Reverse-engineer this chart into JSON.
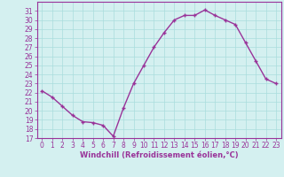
{
  "x": [
    0,
    1,
    2,
    3,
    4,
    5,
    6,
    7,
    8,
    9,
    10,
    11,
    12,
    13,
    14,
    15,
    16,
    17,
    18,
    19,
    20,
    21,
    22,
    23
  ],
  "y": [
    22.2,
    21.5,
    20.5,
    19.5,
    18.8,
    18.7,
    18.4,
    17.2,
    20.3,
    23.0,
    25.0,
    27.0,
    28.6,
    30.0,
    30.5,
    30.5,
    31.1,
    30.5,
    30.0,
    29.5,
    27.5,
    25.5,
    23.5,
    23.0
  ],
  "line_color": "#993399",
  "marker": "+",
  "marker_size": 3,
  "marker_linewidth": 1.0,
  "bg_color": "#d4f0f0",
  "grid_color": "#aadddd",
  "xlabel": "Windchill (Refroidissement éolien,°C)",
  "xlabel_color": "#993399",
  "tick_color": "#993399",
  "spine_color": "#993399",
  "ylim": [
    17,
    32
  ],
  "xlim": [
    -0.5,
    23.5
  ],
  "yticks": [
    17,
    18,
    19,
    20,
    21,
    22,
    23,
    24,
    25,
    26,
    27,
    28,
    29,
    30,
    31
  ],
  "xticks": [
    0,
    1,
    2,
    3,
    4,
    5,
    6,
    7,
    8,
    9,
    10,
    11,
    12,
    13,
    14,
    15,
    16,
    17,
    18,
    19,
    20,
    21,
    22,
    23
  ],
  "linewidth": 1.0,
  "tick_fontsize": 5.5,
  "xlabel_fontsize": 6.0
}
